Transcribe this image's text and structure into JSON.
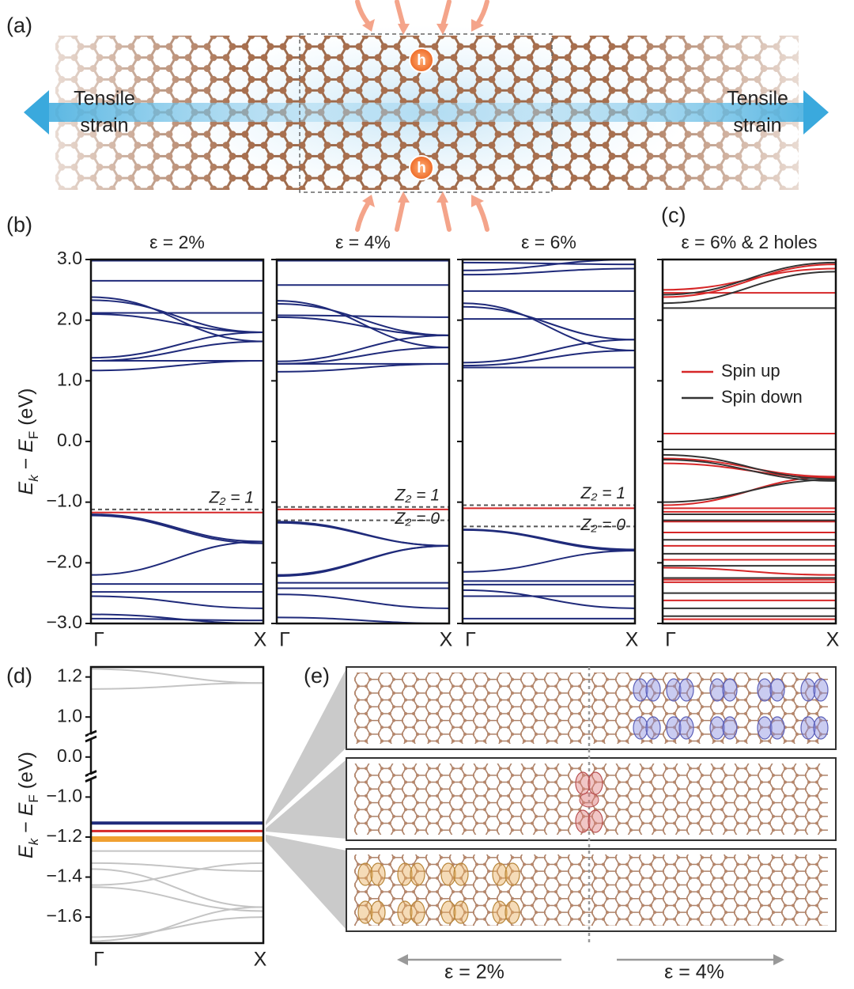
{
  "chart_data": [
    {
      "type": "bands",
      "title": "ε = 2%",
      "categories": [
        "Γ",
        "X"
      ],
      "ylim": [
        -3,
        3
      ],
      "yticks": [
        {
          "value": 3,
          "label": "3.0"
        },
        {
          "value": 2,
          "label": "2.0"
        },
        {
          "value": 1,
          "label": "1.0"
        },
        {
          "value": 0,
          "label": "0.0"
        },
        {
          "value": -1,
          "label": "−1.0"
        },
        {
          "value": -2,
          "label": "−2.0"
        },
        {
          "value": -3,
          "label": "−3.0"
        }
      ],
      "ylabel": [
        "E",
        "k",
        " − ",
        "E",
        "F",
        " (eV)"
      ],
      "series": [
        {
          "color": "#1f2a7a",
          "bands": [
            [
              2.98,
              2.98
            ],
            [
              2.65,
              2.65
            ],
            [
              2.38,
              1.65
            ],
            [
              2.33,
              1.8
            ],
            [
              2.12,
              2.12
            ],
            [
              2.1,
              1.8
            ],
            [
              1.38,
              1.8
            ],
            [
              1.33,
              1.65
            ],
            [
              1.17,
              1.33
            ],
            [
              1.33,
              1.33
            ],
            [
              -1.2,
              -1.65
            ],
            [
              -1.22,
              -1.68
            ],
            [
              -2.2,
              -1.65
            ],
            [
              -2.35,
              -2.35
            ],
            [
              -2.48,
              -2.48
            ],
            [
              -2.55,
              -2.75
            ],
            [
              -2.85,
              -3.0
            ],
            [
              -2.92,
              -2.95
            ]
          ]
        },
        {
          "color": "#d62728",
          "bands": [
            [
              -1.17,
              -1.17
            ]
          ]
        }
      ],
      "reference_lines": [
        {
          "value": -1.12,
          "label": "Z₂ = 1"
        }
      ]
    },
    {
      "type": "bands",
      "title": "ε = 4%",
      "categories": [
        "Γ",
        "X"
      ],
      "ylim": [
        -3,
        3
      ],
      "yticks": [
        3,
        2,
        1,
        0,
        -1,
        -2,
        -3
      ],
      "series": [
        {
          "color": "#1f2a7a",
          "bands": [
            [
              2.98,
              2.98
            ],
            [
              2.58,
              2.58
            ],
            [
              2.32,
              1.55
            ],
            [
              2.27,
              1.75
            ],
            [
              2.08,
              2.05
            ],
            [
              2.05,
              1.75
            ],
            [
              1.32,
              1.75
            ],
            [
              1.28,
              1.55
            ],
            [
              1.15,
              1.28
            ],
            [
              1.28,
              1.28
            ],
            [
              -1.32,
              -1.72
            ],
            [
              -1.34,
              -1.72
            ],
            [
              -2.2,
              -1.72
            ],
            [
              -2.22,
              -1.72
            ],
            [
              -2.33,
              -2.33
            ],
            [
              -2.42,
              -2.42
            ],
            [
              -2.52,
              -2.75
            ],
            [
              -2.9,
              -3.0
            ]
          ]
        },
        {
          "color": "#d62728",
          "bands": [
            [
              -1.12,
              -1.12
            ]
          ]
        }
      ],
      "reference_lines": [
        {
          "value": -1.08,
          "label": "Z₂ = 1"
        },
        {
          "value": -1.3,
          "label": "Z₂ = 0"
        }
      ]
    },
    {
      "type": "bands",
      "title": "ε = 6%",
      "categories": [
        "Γ",
        "X"
      ],
      "ylim": [
        -3,
        3
      ],
      "yticks": [
        3,
        2,
        1,
        0,
        -1,
        -2,
        -3
      ],
      "series": [
        {
          "color": "#1f2a7a",
          "bands": [
            [
              2.95,
              2.92
            ],
            [
              2.82,
              3.0
            ],
            [
              2.75,
              2.85
            ],
            [
              2.48,
              2.48
            ],
            [
              2.28,
              1.5
            ],
            [
              2.22,
              1.68
            ],
            [
              2.02,
              2.02
            ],
            [
              1.3,
              1.68
            ],
            [
              1.25,
              1.5
            ],
            [
              1.22,
              1.22
            ],
            [
              -1.45,
              -1.78
            ],
            [
              -1.46,
              -1.8
            ],
            [
              -2.15,
              -1.8
            ],
            [
              -2.3,
              -2.3
            ],
            [
              -2.36,
              -2.36
            ],
            [
              -2.45,
              -2.75
            ],
            [
              -2.55,
              -2.55
            ],
            [
              -2.92,
              -2.92
            ]
          ]
        },
        {
          "color": "#d62728",
          "bands": [
            [
              -1.1,
              -1.1
            ]
          ]
        }
      ],
      "reference_lines": [
        {
          "value": -1.05,
          "label": "Z₂ = 1"
        },
        {
          "value": -1.4,
          "label": "Z₂ = 0"
        }
      ]
    },
    {
      "type": "bands",
      "title": "ε = 6% & 2 holes",
      "categories": [
        "Γ",
        "X"
      ],
      "ylim": [
        -3,
        3
      ],
      "yticks": [
        3,
        2,
        1,
        0,
        -1,
        -2,
        -3
      ],
      "legend": "right",
      "series": [
        {
          "name": "Spin up",
          "color": "#d62728",
          "bands": [
            [
              2.5,
              2.85
            ],
            [
              2.45,
              2.45
            ],
            [
              2.38,
              2.92
            ],
            [
              0.13,
              0.13
            ],
            [
              -0.28,
              -0.58
            ],
            [
              -0.36,
              -0.6
            ],
            [
              -1.05,
              -0.58
            ],
            [
              -1.1,
              -1.1
            ],
            [
              -1.16,
              -1.16
            ],
            [
              -1.32,
              -1.32
            ],
            [
              -1.5,
              -1.5
            ],
            [
              -1.72,
              -1.72
            ],
            [
              -1.95,
              -1.95
            ],
            [
              -2.08,
              -2.2
            ],
            [
              -2.28,
              -2.28
            ],
            [
              -2.32,
              -2.32
            ],
            [
              -2.62,
              -2.62
            ],
            [
              -2.93,
              -2.93
            ]
          ]
        },
        {
          "name": "Spin down",
          "color": "#333333",
          "bands": [
            [
              2.2,
              2.2
            ],
            [
              2.28,
              2.8
            ],
            [
              2.42,
              2.95
            ],
            [
              -0.13,
              -0.13
            ],
            [
              -0.22,
              -0.62
            ],
            [
              -0.3,
              -0.65
            ],
            [
              -1.0,
              -0.63
            ],
            [
              -1.2,
              -1.2
            ],
            [
              -1.3,
              -1.3
            ],
            [
              -1.62,
              -1.62
            ],
            [
              -1.85,
              -1.85
            ],
            [
              -2.05,
              -2.05
            ],
            [
              -2.25,
              -2.25
            ],
            [
              -2.5,
              -2.5
            ],
            [
              -2.75,
              -2.75
            ],
            [
              -2.88,
              -2.88
            ]
          ]
        }
      ]
    },
    {
      "type": "bands",
      "categories": [
        "Γ",
        "X"
      ],
      "ylim": [
        -1.73,
        1.25
      ],
      "yticks": [
        {
          "value": 1.2,
          "label": "1.2"
        },
        {
          "value": 1.0,
          "label": "1.0"
        },
        {
          "value": 0,
          "label": "0.0"
        },
        {
          "value": -1.0,
          "label": "−1.0"
        },
        {
          "value": -1.2,
          "label": "−1.2"
        },
        {
          "value": -1.4,
          "label": "−1.4"
        },
        {
          "value": -1.6,
          "label": "−1.6"
        }
      ],
      "axis_breaks": [
        [
          1.0,
          0
        ],
        [
          0,
          -1.0
        ]
      ],
      "ylabel": [
        "E",
        "k",
        " − ",
        "E",
        "F",
        " (eV)"
      ],
      "series": [
        {
          "color": "#c4c4c4",
          "line_width": 2,
          "bands": [
            [
              1.24,
              1.17
            ],
            [
              1.14,
              1.17
            ],
            [
              -1.27,
              -1.27
            ],
            [
              -1.33,
              -1.37
            ],
            [
              -1.36,
              -1.55
            ],
            [
              -1.44,
              -1.33
            ],
            [
              -1.45,
              -1.57
            ],
            [
              -1.72,
              -1.55
            ],
            [
              -1.7,
              -1.6
            ]
          ]
        },
        {
          "color": "#1f2a7a",
          "line_width": 4,
          "bands": [
            [
              -1.13,
              -1.13
            ]
          ]
        },
        {
          "color": "#d62728",
          "line_width": 3,
          "bands": [
            [
              -1.17,
              -1.17
            ]
          ]
        },
        {
          "color": "#f0a030",
          "line_width": 7,
          "bands": [
            [
              -1.21,
              -1.21
            ]
          ]
        }
      ]
    }
  ],
  "figure": {
    "panel_labels": [
      "(a)",
      "(b)",
      "(c)",
      "(d)",
      "(e)"
    ],
    "panel_a": {
      "strain_left": [
        "Tensile",
        "strain"
      ],
      "strain_right": [
        "Tensile",
        "strain"
      ],
      "holes": [
        "h",
        "h"
      ]
    },
    "panel_e": {
      "arrows": [
        "ε = 2%",
        "ε = 4%"
      ]
    }
  }
}
